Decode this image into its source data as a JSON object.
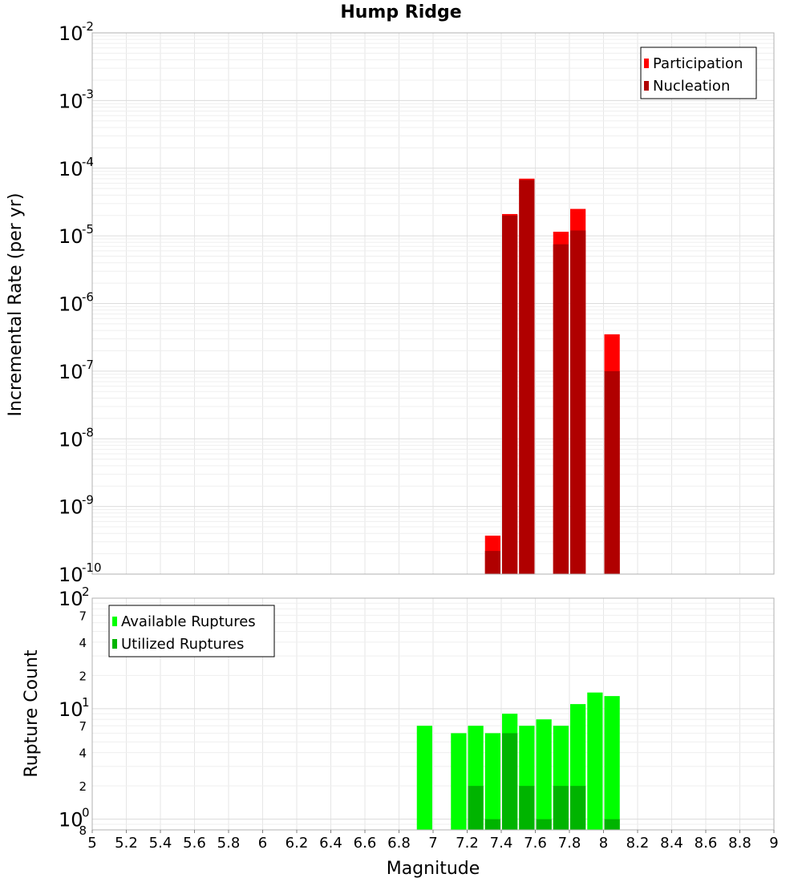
{
  "chart_data": [
    {
      "type": "bar",
      "title": "Hump Ridge",
      "xlabel": "",
      "ylabel": "Incremental Rate (per yr)",
      "xlim": [
        5,
        9
      ],
      "ylim": [
        1e-10,
        0.01
      ],
      "yscale": "log",
      "grid": true,
      "legend_position": "top-right",
      "y_ticks": [
        {
          "base": "10",
          "exp": "-2",
          "value": 0.01
        },
        {
          "base": "10",
          "exp": "-3",
          "value": 0.001
        },
        {
          "base": "10",
          "exp": "-4",
          "value": 0.0001
        },
        {
          "base": "10",
          "exp": "-5",
          "value": 1e-05
        },
        {
          "base": "10",
          "exp": "-6",
          "value": 1e-06
        },
        {
          "base": "10",
          "exp": "-7",
          "value": 1e-07
        },
        {
          "base": "10",
          "exp": "-8",
          "value": 1e-08
        },
        {
          "base": "10",
          "exp": "-9",
          "value": 1e-09
        },
        {
          "base": "10",
          "exp": "-10",
          "value": 1e-10
        }
      ],
      "series": [
        {
          "name": "Participation",
          "color": "#ff0000",
          "points": [
            {
              "x": 7.35,
              "y": 3.7e-10
            },
            {
              "x": 7.45,
              "y": 2.1e-05
            },
            {
              "x": 7.55,
              "y": 7e-05
            },
            {
              "x": 7.75,
              "y": 1.15e-05
            },
            {
              "x": 7.85,
              "y": 2.5e-05
            },
            {
              "x": 8.05,
              "y": 3.5e-07
            }
          ]
        },
        {
          "name": "Nucleation",
          "color": "#b00000",
          "points": [
            {
              "x": 7.35,
              "y": 2.2e-10
            },
            {
              "x": 7.45,
              "y": 2e-05
            },
            {
              "x": 7.55,
              "y": 6.7e-05
            },
            {
              "x": 7.75,
              "y": 7.5e-06
            },
            {
              "x": 7.85,
              "y": 1.2e-05
            },
            {
              "x": 8.05,
              "y": 1e-07
            }
          ]
        }
      ]
    },
    {
      "type": "bar",
      "title": "",
      "xlabel": "Magnitude",
      "ylabel": "Rupture Count",
      "xlim": [
        5,
        9
      ],
      "ylim": [
        0.8,
        100
      ],
      "yscale": "log",
      "grid": true,
      "legend_position": "top-left",
      "x_ticks": [
        "5",
        "5.2",
        "5.4",
        "5.6",
        "5.8",
        "6",
        "6.2",
        "6.4",
        "6.6",
        "6.8",
        "7",
        "7.2",
        "7.4",
        "7.6",
        "7.8",
        "8",
        "8.2",
        "8.4",
        "8.6",
        "8.8",
        "9"
      ],
      "y_ticks": [
        {
          "base": "10",
          "exp": "2",
          "value": 100
        },
        {
          "base": "10",
          "exp": "1",
          "value": 10
        },
        {
          "base": "10",
          "exp": "0",
          "value": 1
        }
      ],
      "y_minor_ticks": [
        {
          "label": "7",
          "value": 70
        },
        {
          "label": "4",
          "value": 40
        },
        {
          "label": "2",
          "value": 20
        },
        {
          "label": "7",
          "value": 7
        },
        {
          "label": "4",
          "value": 4
        },
        {
          "label": "2",
          "value": 2
        },
        {
          "label": "8",
          "value": 0.8
        }
      ],
      "series": [
        {
          "name": "Available Ruptures",
          "color": "#00ff00",
          "points": [
            {
              "x": 6.95,
              "y": 7
            },
            {
              "x": 7.15,
              "y": 6
            },
            {
              "x": 7.25,
              "y": 7
            },
            {
              "x": 7.35,
              "y": 6
            },
            {
              "x": 7.45,
              "y": 9
            },
            {
              "x": 7.55,
              "y": 7
            },
            {
              "x": 7.65,
              "y": 8
            },
            {
              "x": 7.75,
              "y": 7
            },
            {
              "x": 7.85,
              "y": 11
            },
            {
              "x": 7.95,
              "y": 14
            },
            {
              "x": 8.05,
              "y": 13
            }
          ]
        },
        {
          "name": "Utilized Ruptures",
          "color": "#00b400",
          "points": [
            {
              "x": 7.25,
              "y": 2
            },
            {
              "x": 7.35,
              "y": 1
            },
            {
              "x": 7.45,
              "y": 6
            },
            {
              "x": 7.55,
              "y": 2
            },
            {
              "x": 7.65,
              "y": 1
            },
            {
              "x": 7.75,
              "y": 2
            },
            {
              "x": 7.85,
              "y": 2
            },
            {
              "x": 8.05,
              "y": 1
            }
          ]
        }
      ]
    }
  ]
}
